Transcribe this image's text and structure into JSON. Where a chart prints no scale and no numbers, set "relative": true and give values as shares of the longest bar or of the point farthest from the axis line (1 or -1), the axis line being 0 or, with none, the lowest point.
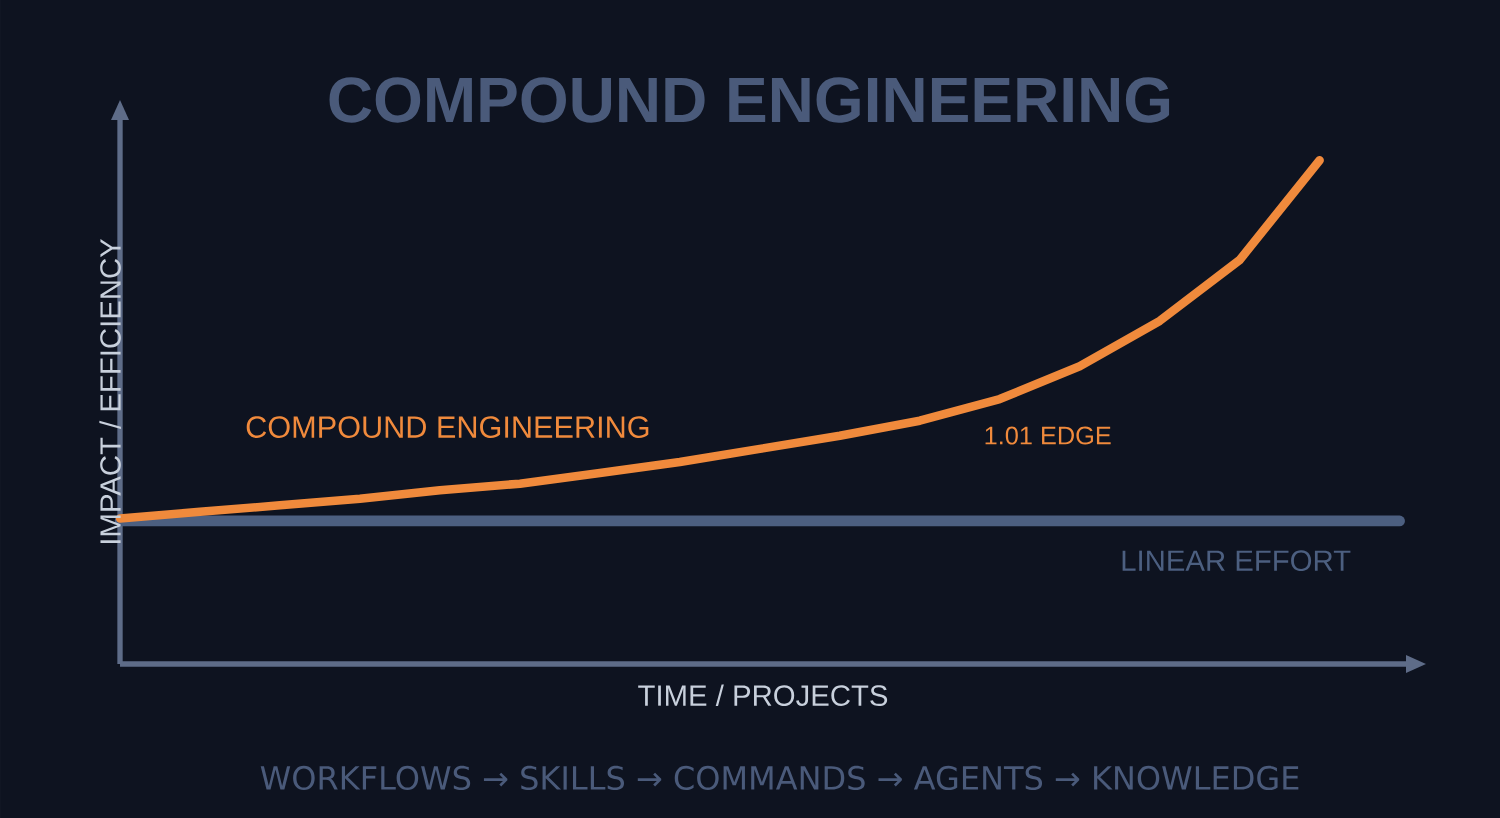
{
  "chart_data": {
    "type": "line",
    "title": "COMPOUND ENGINEERING",
    "xlabel": "TIME / PROJECTS",
    "ylabel": "IMPACT / EFFICIENCY",
    "relative": true,
    "marker": "none",
    "line_style": "solid",
    "categories": [
      null,
      null,
      null,
      null,
      null,
      null,
      null,
      null,
      null,
      null,
      null,
      null,
      null,
      null,
      null,
      null,
      null
    ],
    "series": [
      {
        "name": "COMPOUND ENGINEERING",
        "color": "#f08a3c",
        "values": [
          0.289,
          0.302,
          0.315,
          0.328,
          0.345,
          0.358,
          0.379,
          0.401,
          0.427,
          0.453,
          0.483,
          0.526,
          0.591,
          0.681,
          0.802,
          1,
          null
        ]
      },
      {
        "name": "LINEAR EFFORT",
        "color": "#4c5f80",
        "values": [
          0.284,
          0.284,
          0.284,
          0.284,
          0.284,
          0.284,
          0.284,
          0.284,
          0.284,
          0.284,
          0.284,
          0.284,
          0.284,
          0.284,
          0.284,
          0.284,
          0.284
        ]
      }
    ],
    "annotations": [
      "1.01 EDGE",
      "WORKFLOWS → SKILLS → COMMANDS → AGENTS → KNOWLEDGE"
    ]
  }
}
